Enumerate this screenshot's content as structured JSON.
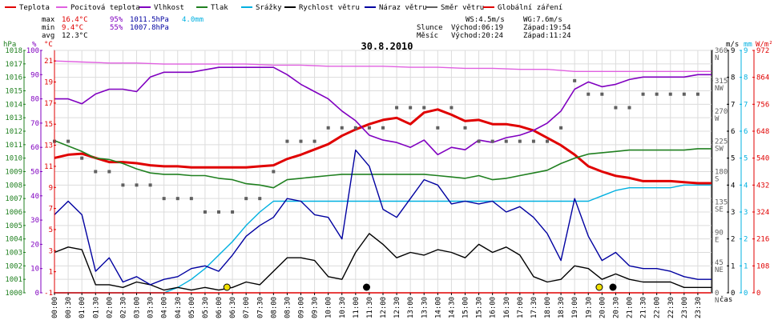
{
  "legend": [
    {
      "label": "Teplota",
      "color": "#e00000"
    },
    {
      "label": "Pocitová teplota",
      "color": "#e060e0"
    },
    {
      "label": "Vlhkost",
      "color": "#8000c0"
    },
    {
      "label": "Tlak",
      "color": "#208020"
    },
    {
      "label": "Srážky",
      "color": "#00b0e0"
    },
    {
      "label": "Rychlost větru",
      "color": "#000000"
    },
    {
      "label": "Náraz větru",
      "color": "#0000a0"
    },
    {
      "label": "Směr větru",
      "color": "#606060"
    },
    {
      "label": "Globální záření",
      "color": "#e00000"
    }
  ],
  "stats": {
    "max_label": "max",
    "min_label": "min",
    "avg_label": "avg",
    "max_temp": "16.4°C",
    "max_hum": "95%",
    "max_press": "1011.5hPa",
    "max_rain": "4.0mm",
    "min_temp": "9.4°C",
    "min_hum": "55%",
    "min_press": "1007.8hPa",
    "avg_temp": "12.3°C"
  },
  "wind_info": {
    "ws": "WS:4.5m/s",
    "wg": "WG:7.6m/s",
    "sun_label": "Slunce",
    "moon_label": "Měsíc",
    "sun_rise": "Východ:06:19",
    "sun_set": "Západ:19:54",
    "moon_rise": "Východ:20:24",
    "moon_set": "Západ:11:24"
  },
  "axis_units": {
    "hpa": "hPa",
    "pct": "%",
    "degc": "°C",
    "ms": "m/s",
    "mm": "mm",
    "wm2": "W/m²",
    "time": "čas"
  },
  "chart_data": {
    "type": "line",
    "title": "30.8.2010",
    "x_unit": "time (HH:MM)",
    "x_ticks": [
      "00:00",
      "00:30",
      "01:00",
      "01:30",
      "02:00",
      "02:30",
      "03:00",
      "03:30",
      "04:00",
      "04:30",
      "05:00",
      "05:30",
      "06:00",
      "06:30",
      "07:00",
      "07:30",
      "08:00",
      "08:30",
      "09:00",
      "09:30",
      "10:00",
      "10:30",
      "11:00",
      "11:30",
      "12:00",
      "12:30",
      "13:00",
      "13:30",
      "14:00",
      "14:30",
      "15:00",
      "15:30",
      "16:00",
      "16:30",
      "17:00",
      "17:30",
      "18:00",
      "18:30",
      "19:00",
      "19:30",
      "20:00",
      "20:30",
      "21:00",
      "21:30",
      "22:00",
      "22:30",
      "23:00",
      "23:30"
    ],
    "x_range": [
      0,
      24
    ],
    "axes": {
      "hpa_ticks": [
        "1000",
        "1001",
        "1002",
        "1003",
        "1004",
        "1005",
        "1006",
        "1007",
        "1008",
        "1009",
        "1010",
        "1011",
        "1012",
        "1013",
        "1014",
        "1015",
        "1016",
        "1017",
        "1018"
      ],
      "pct_ticks": [
        "0",
        "10",
        "20",
        "30",
        "40",
        "50",
        "60",
        "70",
        "80",
        "90",
        "100"
      ],
      "degc_ticks": [
        "-1",
        "1",
        "3",
        "5",
        "7",
        "9",
        "11",
        "13",
        "15",
        "17",
        "19",
        "21"
      ],
      "dir_ticks": [
        "0",
        "45",
        "90",
        "135",
        "180",
        "225",
        "270",
        "315",
        "360"
      ],
      "dir_labels": [
        "N",
        "NE",
        "E",
        "SE",
        "S",
        "SW",
        "W",
        "NW",
        "N"
      ],
      "ms_ticks": [
        "0",
        "1",
        "2",
        "3",
        "4",
        "5",
        "6",
        "7",
        "8",
        "9"
      ],
      "mm_ticks": [
        "0",
        "1",
        "2",
        "3",
        "4",
        "5",
        "6",
        "7",
        "8",
        "9"
      ],
      "wm2_ticks": [
        "0",
        "108",
        "216",
        "324",
        "432",
        "540",
        "648",
        "756",
        "864",
        "972"
      ],
      "temp_range": [
        -1,
        22
      ],
      "hum_range": [
        0,
        100
      ],
      "press_range": [
        1000,
        1018
      ],
      "dir_range": [
        0,
        360
      ],
      "wind_range": [
        0,
        9
      ],
      "rain_range": [
        0,
        9
      ],
      "rad_range": [
        0,
        972
      ]
    },
    "series": [
      {
        "name": "Teplota",
        "axis": "temp",
        "color": "#e00000",
        "x": [
          0,
          0.5,
          1,
          1.5,
          2,
          2.5,
          3,
          3.5,
          4,
          4.5,
          5,
          5.5,
          6,
          6.5,
          7,
          7.5,
          8,
          8.5,
          9,
          9.5,
          10,
          10.5,
          11,
          11.5,
          12,
          12.5,
          13,
          13.5,
          14,
          14.5,
          15,
          15.5,
          16,
          16.5,
          17,
          17.5,
          18,
          18.5,
          19,
          19.5,
          20,
          20.5,
          21,
          21.5,
          22,
          22.5,
          23,
          23.5,
          24
        ],
        "values": [
          11.8,
          12.1,
          12.2,
          11.8,
          11.4,
          11.4,
          11.3,
          11.1,
          11.0,
          11.0,
          10.9,
          10.9,
          10.9,
          10.9,
          10.9,
          11.0,
          11.1,
          11.7,
          12.1,
          12.6,
          13.1,
          13.9,
          14.5,
          15.0,
          15.4,
          15.6,
          15.0,
          16.1,
          16.4,
          15.9,
          15.3,
          15.4,
          15.0,
          15.0,
          14.8,
          14.4,
          13.7,
          13.0,
          12.1,
          11.0,
          10.5,
          10.1,
          9.9,
          9.6,
          9.6,
          9.6,
          9.5,
          9.4,
          9.4
        ]
      },
      {
        "name": "Pocitová teplota",
        "axis": "temp",
        "color": "#e060e0",
        "x": [
          0,
          1,
          2,
          3,
          4,
          5,
          6,
          7,
          8,
          9,
          10,
          11,
          12,
          13,
          14,
          15,
          16,
          17,
          18,
          19,
          20,
          21,
          22,
          23,
          24
        ],
        "values": [
          21.0,
          20.9,
          20.8,
          20.8,
          20.7,
          20.7,
          20.7,
          20.7,
          20.6,
          20.6,
          20.5,
          20.5,
          20.5,
          20.4,
          20.4,
          20.3,
          20.3,
          20.2,
          20.2,
          20.0,
          20.0,
          20.0,
          20.0,
          20.0,
          20.0
        ]
      },
      {
        "name": "Vlhkost",
        "axis": "hum",
        "color": "#8000c0",
        "x": [
          0,
          0.5,
          1,
          1.5,
          2,
          2.5,
          3,
          3.5,
          4,
          4.5,
          5,
          5.5,
          6,
          6.5,
          7,
          7.5,
          8,
          8.5,
          9,
          9.5,
          10,
          10.5,
          11,
          11.5,
          12,
          12.5,
          13,
          13.5,
          14,
          14.5,
          15,
          15.5,
          16,
          16.5,
          17,
          17.5,
          18,
          18.5,
          19,
          19.5,
          20,
          20.5,
          21,
          21.5,
          22,
          22.5,
          23,
          23.5,
          24
        ],
        "values": [
          80,
          80,
          78,
          82,
          84,
          84,
          83,
          89,
          91,
          91,
          91,
          92,
          93,
          93,
          93,
          93,
          93,
          90,
          86,
          83,
          80,
          75,
          71,
          65,
          63,
          62,
          60,
          63,
          57,
          60,
          59,
          63,
          62,
          64,
          65,
          67,
          70,
          75,
          84,
          87,
          85,
          86,
          88,
          89,
          89,
          89,
          89,
          90,
          90
        ]
      },
      {
        "name": "Tlak",
        "axis": "press",
        "color": "#208020",
        "x": [
          0,
          0.5,
          1,
          1.5,
          2,
          2.5,
          3,
          3.5,
          4,
          4.5,
          5,
          5.5,
          6,
          6.5,
          7,
          7.5,
          8,
          8.5,
          9,
          9.5,
          10,
          10.5,
          11,
          11.5,
          12,
          12.5,
          13,
          13.5,
          14,
          14.5,
          15,
          15.5,
          16,
          16.5,
          17,
          17.5,
          18,
          18.5,
          19,
          19.5,
          20,
          20.5,
          21,
          21.5,
          22,
          22.5,
          23,
          23.5,
          24
        ],
        "values": [
          1011.3,
          1010.9,
          1010.5,
          1010.0,
          1009.9,
          1009.6,
          1009.2,
          1008.9,
          1008.8,
          1008.8,
          1008.7,
          1008.7,
          1008.5,
          1008.4,
          1008.1,
          1008.0,
          1007.8,
          1008.4,
          1008.5,
          1008.6,
          1008.7,
          1008.8,
          1008.8,
          1008.8,
          1008.8,
          1008.8,
          1008.8,
          1008.8,
          1008.7,
          1008.6,
          1008.5,
          1008.7,
          1008.4,
          1008.5,
          1008.7,
          1008.9,
          1009.1,
          1009.6,
          1010.0,
          1010.3,
          1010.4,
          1010.5,
          1010.6,
          1010.6,
          1010.6,
          1010.6,
          1010.6,
          1010.7,
          1010.7
        ]
      },
      {
        "name": "Srážky",
        "axis": "rain",
        "color": "#00b0e0",
        "x": [
          0,
          4.0,
          4.5,
          5.0,
          5.5,
          6.0,
          6.5,
          7.0,
          7.5,
          8.0,
          17.0,
          19.5,
          20.0,
          20.5,
          21.0,
          21.5,
          22.0,
          22.5,
          23.0,
          23.5,
          24
        ],
        "values": [
          0,
          0,
          0.2,
          0.5,
          0.9,
          1.4,
          1.9,
          2.5,
          3.0,
          3.4,
          3.4,
          3.4,
          3.6,
          3.8,
          3.9,
          3.9,
          3.9,
          3.9,
          4.0,
          4.0,
          4.0
        ]
      },
      {
        "name": "Rychlost větru",
        "axis": "wind",
        "color": "#000000",
        "x": [
          0,
          0.5,
          1,
          1.5,
          2,
          2.5,
          3,
          3.5,
          4,
          4.5,
          5,
          5.5,
          6,
          6.5,
          7,
          7.5,
          8,
          8.5,
          9,
          9.5,
          10,
          10.5,
          11,
          11.5,
          12,
          12.5,
          13,
          13.5,
          14,
          14.5,
          15,
          15.5,
          16,
          16.5,
          17,
          17.5,
          18,
          18.5,
          19,
          19.5,
          20,
          20.5,
          21,
          21.5,
          22,
          22.5,
          23,
          23.5,
          24
        ],
        "values": [
          1.5,
          1.7,
          1.6,
          0.3,
          0.3,
          0.2,
          0.4,
          0.3,
          0.1,
          0.2,
          0.1,
          0.2,
          0.1,
          0.2,
          0.4,
          0.3,
          0.8,
          1.3,
          1.3,
          1.2,
          0.6,
          0.5,
          1.5,
          2.2,
          1.8,
          1.3,
          1.5,
          1.4,
          1.6,
          1.5,
          1.3,
          1.8,
          1.5,
          1.7,
          1.4,
          0.6,
          0.4,
          0.5,
          1.0,
          0.9,
          0.5,
          0.7,
          0.5,
          0.4,
          0.4,
          0.4,
          0.2,
          0.2,
          0.2
        ]
      },
      {
        "name": "Náraz větru",
        "axis": "wind",
        "color": "#0000a0",
        "x": [
          0,
          0.5,
          1,
          1.5,
          2,
          2.5,
          3,
          3.5,
          4,
          4.5,
          5,
          5.5,
          6,
          6.5,
          7,
          7.5,
          8,
          8.5,
          9,
          9.5,
          10,
          10.5,
          11,
          11.5,
          12,
          12.5,
          13,
          13.5,
          14,
          14.5,
          15,
          15.5,
          16,
          16.5,
          17,
          17.5,
          18,
          18.5,
          19,
          19.5,
          20,
          20.5,
          21,
          21.5,
          22,
          22.5,
          23,
          23.5,
          24
        ],
        "values": [
          2.9,
          3.4,
          2.9,
          0.8,
          1.3,
          0.4,
          0.6,
          0.3,
          0.5,
          0.6,
          0.9,
          1.0,
          0.8,
          1.4,
          2.1,
          2.5,
          2.8,
          3.5,
          3.4,
          2.9,
          2.8,
          2.0,
          5.3,
          4.7,
          3.1,
          2.8,
          3.5,
          4.2,
          4.0,
          3.3,
          3.4,
          3.3,
          3.4,
          3.0,
          3.2,
          2.8,
          2.2,
          1.2,
          3.5,
          2.1,
          1.2,
          1.5,
          1.0,
          0.9,
          0.9,
          0.8,
          0.6,
          0.5,
          0.5
        ]
      },
      {
        "name": "Směr větru",
        "axis": "dir",
        "color": "#606060",
        "style": "dots",
        "x": [
          0,
          0.5,
          1,
          1.5,
          2,
          2.5,
          3,
          3.5,
          4,
          4.5,
          5,
          5.5,
          6,
          6.5,
          7,
          7.5,
          8,
          8.5,
          9,
          9.5,
          10,
          10.5,
          11,
          11.5,
          12,
          12.5,
          13,
          13.5,
          14,
          14.5,
          15,
          15.5,
          16,
          16.5,
          17,
          17.5,
          18,
          18.5,
          19,
          19.5,
          20,
          20.5,
          21,
          21.5,
          22,
          22.5,
          23,
          23.5
        ],
        "values": [
          225,
          225,
          200,
          180,
          180,
          160,
          160,
          160,
          140,
          140,
          140,
          120,
          120,
          120,
          140,
          140,
          180,
          225,
          225,
          225,
          245,
          245,
          245,
          245,
          245,
          275,
          275,
          275,
          245,
          275,
          245,
          225,
          225,
          225,
          225,
          225,
          225,
          245,
          315,
          295,
          295,
          275,
          275,
          295,
          295,
          295,
          295,
          295
        ]
      },
      {
        "name": "Globální záření",
        "axis": "rad",
        "color": "#e00000",
        "x": [
          0,
          24
        ],
        "values": [
          0,
          0
        ]
      }
    ],
    "markers": [
      {
        "time": 6.3,
        "kind": "sunrise",
        "color": "#f0e000"
      },
      {
        "time": 11.4,
        "kind": "moonset",
        "color": "#000000"
      },
      {
        "time": 19.9,
        "kind": "sunset",
        "color": "#f0e000"
      },
      {
        "time": 20.4,
        "kind": "moonrise",
        "color": "#000000"
      }
    ],
    "grid": true
  }
}
